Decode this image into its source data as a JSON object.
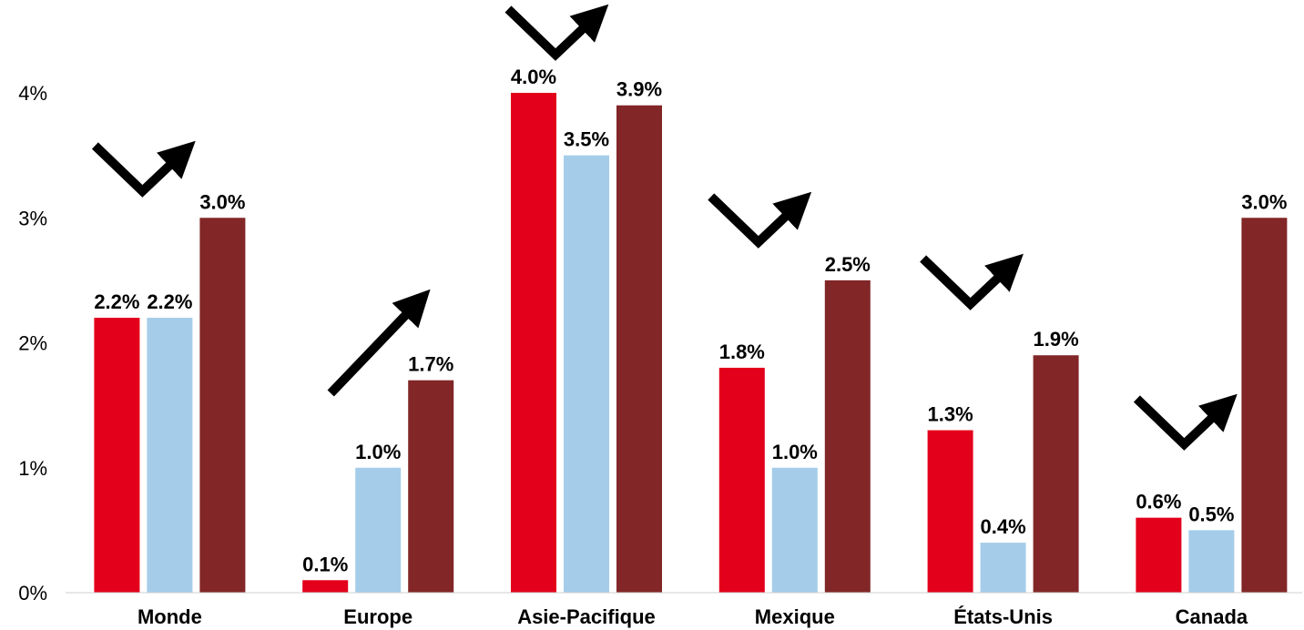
{
  "chart_data": {
    "type": "bar",
    "title": "",
    "xlabel": "",
    "ylabel": "",
    "categories": [
      "Monde",
      "Europe",
      "Asie-Pacifique",
      "Mexique",
      "États-Unis",
      "Canada"
    ],
    "series": [
      {
        "color": "#e3001b",
        "values": [
          2.2,
          0.1,
          4.0,
          1.8,
          1.3,
          0.6
        ],
        "labels": [
          "2.2%",
          "0.1%",
          "4.0%",
          "1.8%",
          "1.3%",
          "0.6%"
        ]
      },
      {
        "color": "#a5cdea",
        "values": [
          2.2,
          1.0,
          3.5,
          1.0,
          0.4,
          0.5
        ],
        "labels": [
          "2.2%",
          "1.0%",
          "3.5%",
          "1.0%",
          "0.4%",
          "0.5%"
        ]
      },
      {
        "color": "#822627",
        "values": [
          3.0,
          1.7,
          3.9,
          2.5,
          1.9,
          3.0
        ],
        "labels": [
          "3.0%",
          "1.7%",
          "3.9%",
          "2.5%",
          "1.9%",
          "3.0%"
        ]
      }
    ],
    "ylim": [
      0,
      4
    ],
    "yticks": [
      "0%",
      "1%",
      "2%",
      "3%",
      "4%"
    ],
    "grid": false,
    "legend": "none",
    "annotations": [
      {
        "category": "Monde",
        "shape": "check-arrow"
      },
      {
        "category": "Europe",
        "shape": "up-arrow"
      },
      {
        "category": "Asie-Pacifique",
        "shape": "check-arrow"
      },
      {
        "category": "Mexique",
        "shape": "check-arrow"
      },
      {
        "category": "États-Unis",
        "shape": "check-arrow"
      },
      {
        "category": "Canada",
        "shape": "check-arrow"
      }
    ]
  }
}
